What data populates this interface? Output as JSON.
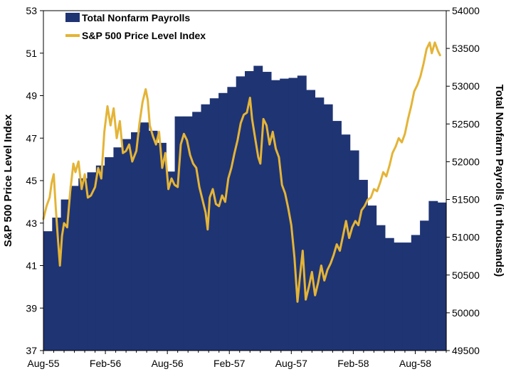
{
  "chart_data": {
    "type": "bar+line",
    "legend": {
      "placement": "top-left",
      "items": [
        {
          "label": "Total Nonfarm Payrolls",
          "type": "bar",
          "color": "#1f3473"
        },
        {
          "label": "S&P 500 Price Level Index",
          "type": "line",
          "color": "#e4b437"
        }
      ]
    },
    "x_axis": {
      "ticks": [
        "Aug-55",
        "Feb-56",
        "Aug-56",
        "Feb-57",
        "Aug-57",
        "Feb-58",
        "Aug-58"
      ],
      "range": [
        "Aug-55",
        "Oct-58"
      ]
    },
    "y_left": {
      "label": "S&P 500 Price Level Index",
      "min": 37,
      "max": 53,
      "ticks": [
        37,
        39,
        41,
        43,
        45,
        47,
        49,
        51,
        53
      ]
    },
    "y_right": {
      "label": "Total Nonfarm Payrolls (in thousands)",
      "min": 49500,
      "max": 54000,
      "ticks": [
        49500,
        50000,
        50500,
        51000,
        51500,
        52000,
        52500,
        53000,
        53500,
        54000
      ]
    },
    "grid": false,
    "series": [
      {
        "name": "Total Nonfarm Payrolls",
        "type": "bar",
        "axis": "right",
        "color": "#1f3473",
        "values": [
          51080,
          51260,
          51500,
          51680,
          51780,
          51860,
          51950,
          52060,
          52190,
          52300,
          52390,
          52520,
          52410,
          52250,
          51870,
          52600,
          52600,
          52660,
          52760,
          52840,
          52910,
          52990,
          53130,
          53200,
          53270,
          53190,
          53080,
          53100,
          53110,
          53140,
          52950,
          52850,
          52760,
          52540,
          52360,
          52150,
          51760,
          51420,
          51160,
          50990,
          50930,
          50930,
          51030,
          51220,
          51480,
          51460
        ]
      },
      {
        "name": "S&P 500 Price Level Index",
        "type": "line",
        "axis": "left",
        "color": "#e4b437",
        "points": [
          [
            0.0,
            43.2
          ],
          [
            0.3,
            43.8
          ],
          [
            0.6,
            44.2
          ],
          [
            0.8,
            44.9
          ],
          [
            1.0,
            45.3
          ],
          [
            1.2,
            43.7
          ],
          [
            1.4,
            42.3
          ],
          [
            1.6,
            41.0
          ],
          [
            1.8,
            42.4
          ],
          [
            2.0,
            43.0
          ],
          [
            2.3,
            42.8
          ],
          [
            2.6,
            44.5
          ],
          [
            2.9,
            45.8
          ],
          [
            3.1,
            45.4
          ],
          [
            3.4,
            45.9
          ],
          [
            3.7,
            44.6
          ],
          [
            4.0,
            45.3
          ],
          [
            4.3,
            44.2
          ],
          [
            4.6,
            44.3
          ],
          [
            5.0,
            44.7
          ],
          [
            5.3,
            45.6
          ],
          [
            5.6,
            45.1
          ],
          [
            5.9,
            47.3
          ],
          [
            6.2,
            48.5
          ],
          [
            6.5,
            47.6
          ],
          [
            6.8,
            48.4
          ],
          [
            7.1,
            47.0
          ],
          [
            7.4,
            47.8
          ],
          [
            7.7,
            46.3
          ],
          [
            8.0,
            46.4
          ],
          [
            8.3,
            46.7
          ],
          [
            8.6,
            45.9
          ],
          [
            9.0,
            46.4
          ],
          [
            9.3,
            47.7
          ],
          [
            9.6,
            48.7
          ],
          [
            9.9,
            49.3
          ],
          [
            10.1,
            48.8
          ],
          [
            10.3,
            47.6
          ],
          [
            10.6,
            47.1
          ],
          [
            10.9,
            46.7
          ],
          [
            11.2,
            47.3
          ],
          [
            11.5,
            45.6
          ],
          [
            11.8,
            46.3
          ],
          [
            12.1,
            44.6
          ],
          [
            12.4,
            45.1
          ],
          [
            12.7,
            44.8
          ],
          [
            13.0,
            44.7
          ],
          [
            13.3,
            46.7
          ],
          [
            13.6,
            47.2
          ],
          [
            13.9,
            46.9
          ],
          [
            14.2,
            46.2
          ],
          [
            14.5,
            45.8
          ],
          [
            14.8,
            45.6
          ],
          [
            15.1,
            44.7
          ],
          [
            15.4,
            44.1
          ],
          [
            15.7,
            43.5
          ],
          [
            15.9,
            42.7
          ],
          [
            16.1,
            44.2
          ],
          [
            16.4,
            44.6
          ],
          [
            16.7,
            43.9
          ],
          [
            17.0,
            43.8
          ],
          [
            17.3,
            44.3
          ],
          [
            17.6,
            44.0
          ],
          [
            17.9,
            45.1
          ],
          [
            18.2,
            45.6
          ],
          [
            18.5,
            46.3
          ],
          [
            18.8,
            46.9
          ],
          [
            19.1,
            47.7
          ],
          [
            19.4,
            48.1
          ],
          [
            19.7,
            48.2
          ],
          [
            20.0,
            48.9
          ],
          [
            20.2,
            47.9
          ],
          [
            20.5,
            47.0
          ],
          [
            20.8,
            46.1
          ],
          [
            21.0,
            45.8
          ],
          [
            21.3,
            47.9
          ],
          [
            21.6,
            47.6
          ],
          [
            21.9,
            46.7
          ],
          [
            22.2,
            47.3
          ],
          [
            22.5,
            46.5
          ],
          [
            22.8,
            46.1
          ],
          [
            23.1,
            44.8
          ],
          [
            23.4,
            44.4
          ],
          [
            23.7,
            43.7
          ],
          [
            24.0,
            42.9
          ],
          [
            24.3,
            41.4
          ],
          [
            24.6,
            39.3
          ],
          [
            24.8,
            40.3
          ],
          [
            25.1,
            41.7
          ],
          [
            25.4,
            39.4
          ],
          [
            25.7,
            40.0
          ],
          [
            26.0,
            40.7
          ],
          [
            26.3,
            39.6
          ],
          [
            26.6,
            40.2
          ],
          [
            26.9,
            41.0
          ],
          [
            27.2,
            40.3
          ],
          [
            27.5,
            40.8
          ],
          [
            27.8,
            41.1
          ],
          [
            28.1,
            41.5
          ],
          [
            28.4,
            42.0
          ],
          [
            28.7,
            41.7
          ],
          [
            29.0,
            42.4
          ],
          [
            29.3,
            43.1
          ],
          [
            29.6,
            42.3
          ],
          [
            29.9,
            42.8
          ],
          [
            30.2,
            43.1
          ],
          [
            30.5,
            42.9
          ],
          [
            30.8,
            43.6
          ],
          [
            31.1,
            43.8
          ],
          [
            31.4,
            44.1
          ],
          [
            31.7,
            44.2
          ],
          [
            32.0,
            44.6
          ],
          [
            32.3,
            44.5
          ],
          [
            32.6,
            44.9
          ],
          [
            32.9,
            45.4
          ],
          [
            33.2,
            45.2
          ],
          [
            33.5,
            45.7
          ],
          [
            33.8,
            46.3
          ],
          [
            34.1,
            46.6
          ],
          [
            34.4,
            47.0
          ],
          [
            34.7,
            46.8
          ],
          [
            35.0,
            47.2
          ],
          [
            35.3,
            47.9
          ],
          [
            35.6,
            48.5
          ],
          [
            35.9,
            49.2
          ],
          [
            36.2,
            49.5
          ],
          [
            36.5,
            49.9
          ],
          [
            36.8,
            50.5
          ],
          [
            37.1,
            51.2
          ],
          [
            37.4,
            51.5
          ],
          [
            37.6,
            51.0
          ],
          [
            37.9,
            51.5
          ],
          [
            38.2,
            51.1
          ],
          [
            38.4,
            50.9
          ]
        ]
      }
    ]
  }
}
